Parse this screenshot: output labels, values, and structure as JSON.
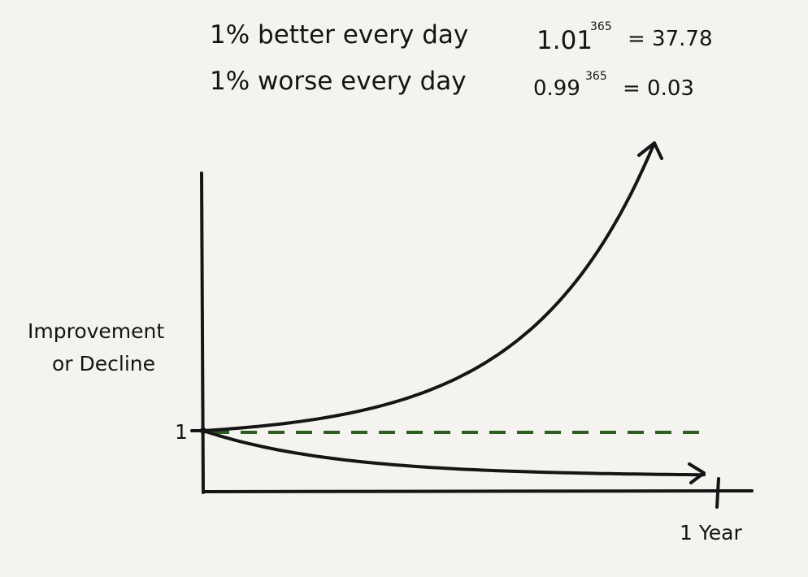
{
  "header": {
    "better_text": "1% better every day",
    "better_base": "1.01",
    "better_exp": "365",
    "better_result": "= 37.78",
    "worse_text": "1% worse every day",
    "worse_base": "0.99",
    "worse_exp": "365",
    "worse_result": "= 0.03"
  },
  "chart_data": {
    "type": "line",
    "title": "",
    "ylabel_line1": "Improvement",
    "ylabel_line2": "or Decline",
    "xlabel": "",
    "x_tick_label": "1 Year",
    "y_tick_label": "1",
    "x_unit": "days",
    "xlim": [
      0,
      365
    ],
    "grid": false,
    "baseline": {
      "y": 1,
      "style": "dashed",
      "color": "#2e5e22"
    },
    "series": [
      {
        "key": "better",
        "rate": 1.01,
        "end_value": 37.78
      },
      {
        "key": "worse",
        "rate": 0.99,
        "end_value": 0.03
      }
    ]
  },
  "colors": {
    "background": "#f4f3ef",
    "ink": "#151515",
    "baseline": "#2e5e22"
  }
}
